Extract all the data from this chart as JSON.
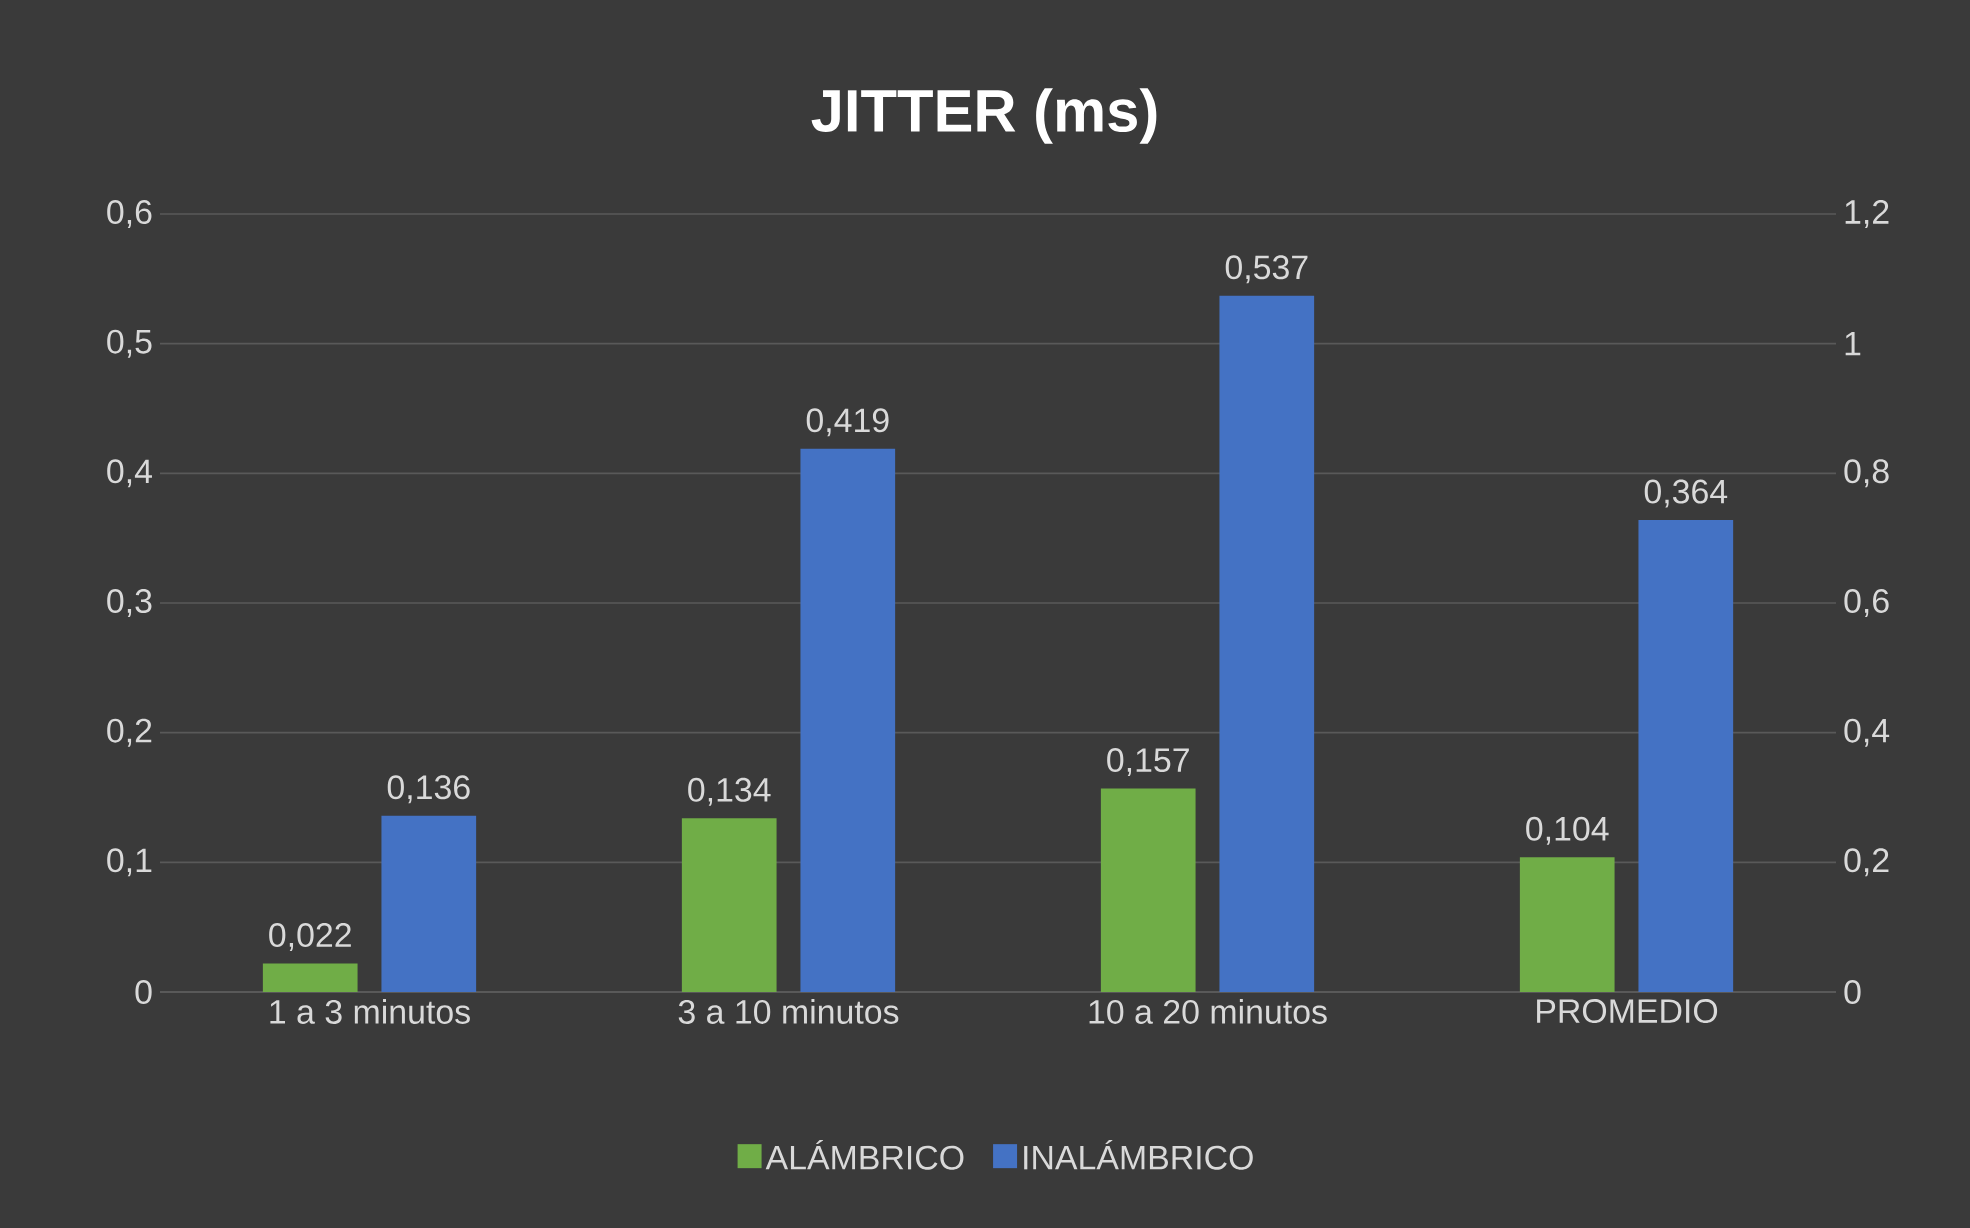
{
  "chart_data": {
    "type": "bar",
    "title": "JITTER (ms)",
    "categories": [
      "1 a 3 minutos",
      "3 a 10 minutos",
      "10 a 20 minutos",
      "PROMEDIO"
    ],
    "series": [
      {
        "name": "ALÁMBRICO",
        "color": "#70ad47",
        "values": [
          0.022,
          0.134,
          0.157,
          0.104
        ],
        "value_labels": [
          "0,022",
          "0,134",
          "0,157",
          "0,104"
        ]
      },
      {
        "name": "INALÁMBRICO",
        "color": "#4472c4",
        "values": [
          0.136,
          0.419,
          0.537,
          0.364
        ],
        "value_labels": [
          "0,136",
          "0,419",
          "0,537",
          "0,364"
        ]
      }
    ],
    "ylim": [
      0,
      0.6
    ],
    "yticks": [
      0,
      {
        "value": 0.1,
        "label": "0,1"
      },
      {
        "value": 0.2,
        "label": "0,2"
      },
      {
        "value": 0.3,
        "label": "0,3"
      },
      {
        "value": 0.4,
        "label": "0,4"
      },
      {
        "value": 0.5,
        "label": "0,5"
      },
      {
        "value": 0.6,
        "label": "0,6"
      }
    ],
    "y2lim": [
      0,
      1.2
    ],
    "y2ticks": [
      0,
      {
        "value": 0.2,
        "label": "0,2"
      },
      {
        "value": 0.4,
        "label": "0,4"
      },
      {
        "value": 0.6,
        "label": "0,6"
      },
      {
        "value": 0.8,
        "label": "0,8"
      },
      1,
      {
        "value": 1.2,
        "label": "1,2"
      }
    ],
    "grid": "y",
    "legend": "bottom"
  }
}
